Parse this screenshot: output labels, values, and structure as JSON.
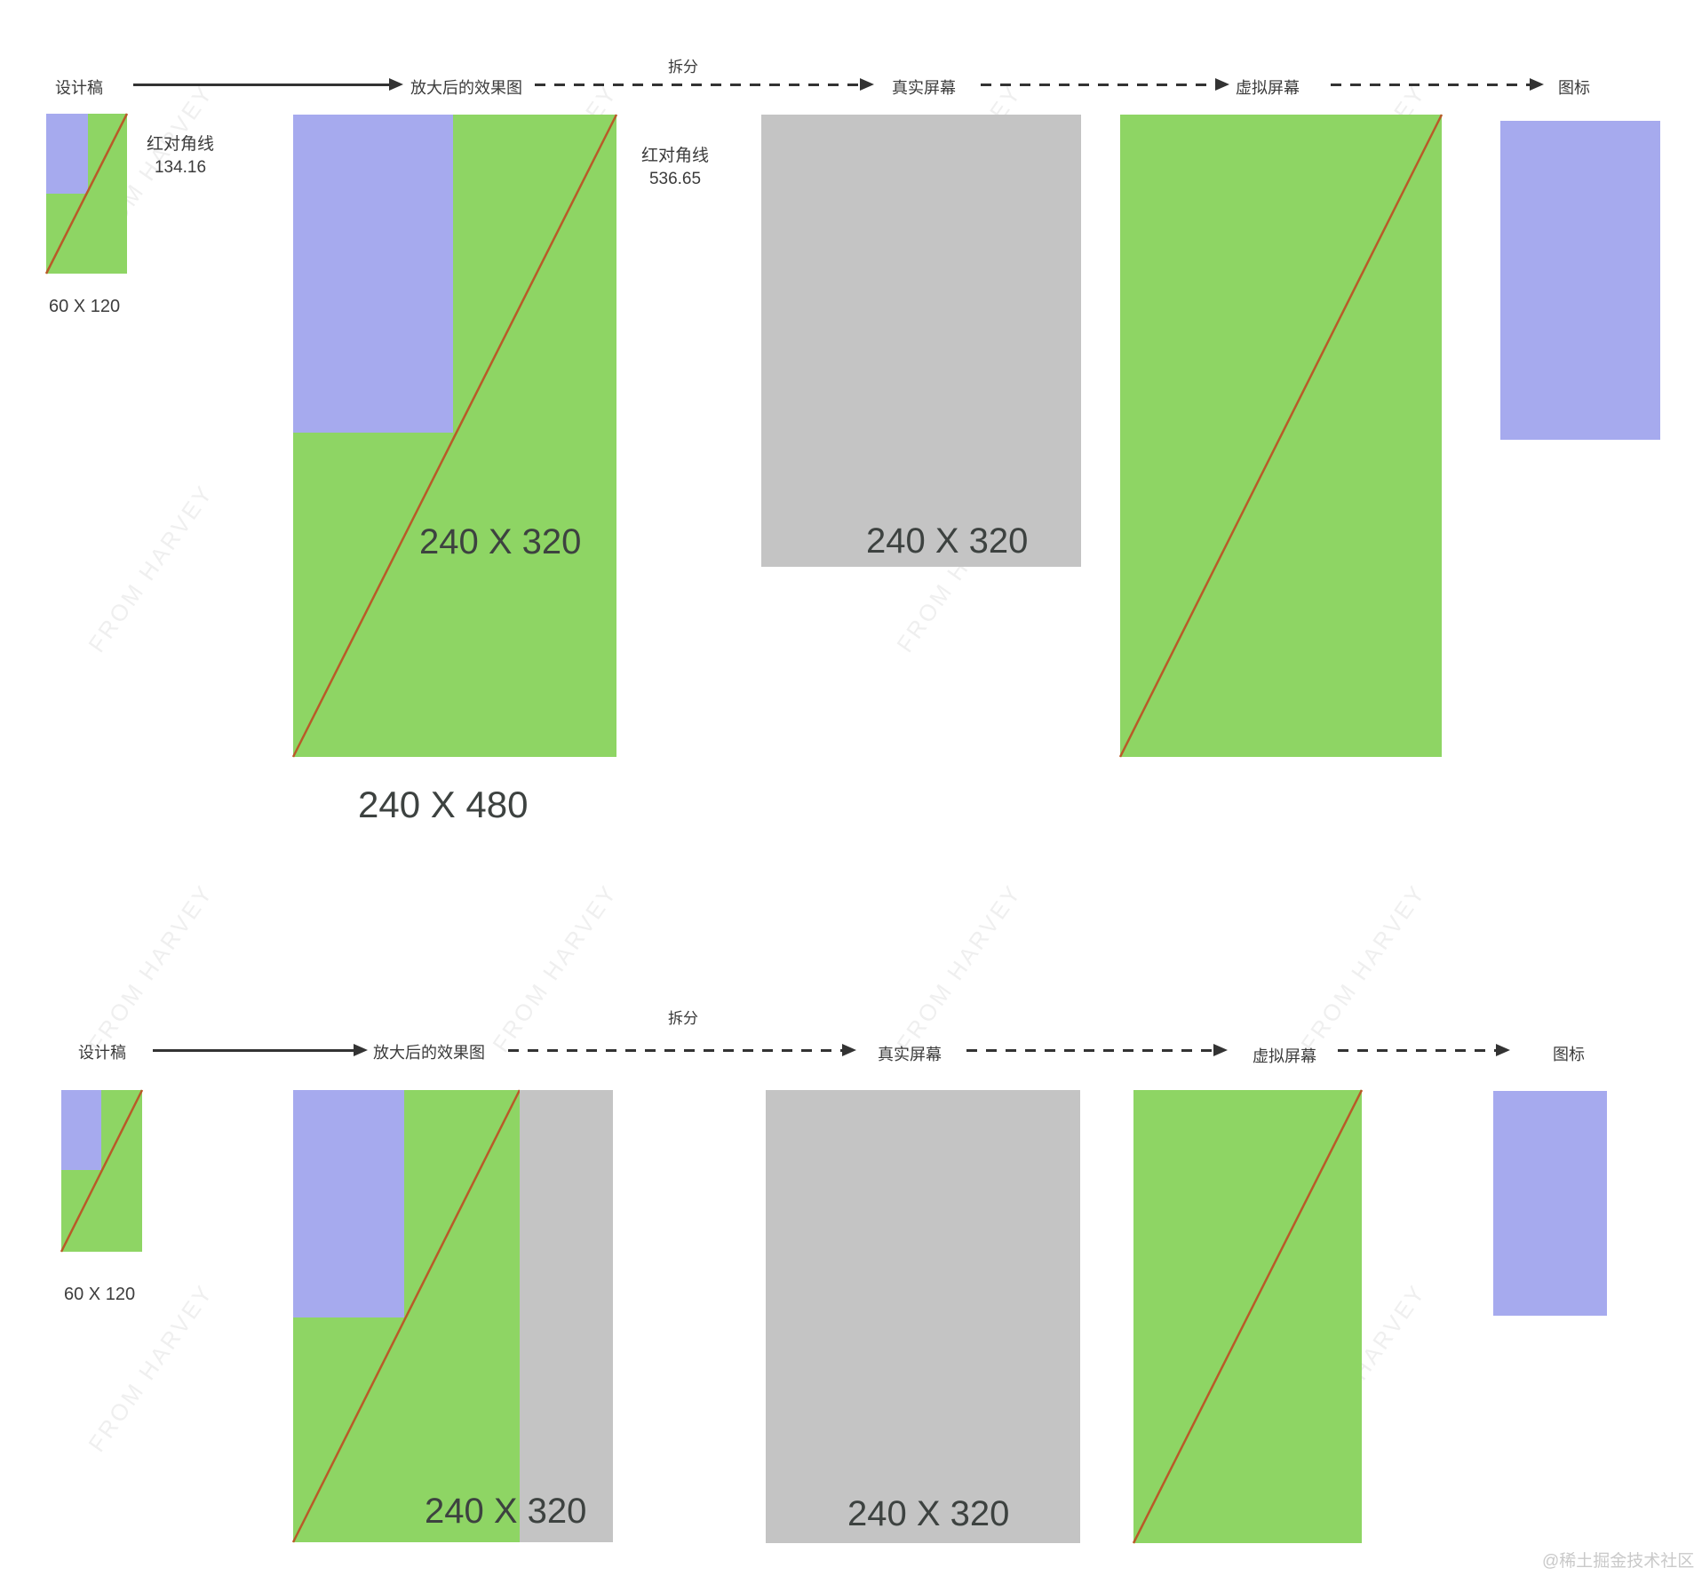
{
  "colors": {
    "green": "#8ed564",
    "purple": "#a6aaee",
    "gray": "#c4c4c4",
    "red_line": "#b95a28",
    "ink": "#3b3b3b"
  },
  "watermark_text": "FROM HARVEY",
  "credit": "@稀土掘金技术社区",
  "rows": [
    {
      "labels": {
        "design": "设计稿",
        "enlarged": "放大后的效果图",
        "split": "拆分",
        "real_screen": "真实屏幕",
        "virtual_screen": "虚拟屏幕",
        "icon": "图标"
      },
      "design_size": "60 X 120",
      "red_diagonal_label": "红对角线",
      "red_diagonal_value": "134.16",
      "red_diagonal_label_2": "红对角线",
      "red_diagonal_value_2": "536.65",
      "enlarged_inner_size": "240 X 320",
      "enlarged_full_size": "240 X 480",
      "real_size": "240 X 320"
    },
    {
      "labels": {
        "design": "设计稿",
        "enlarged": "放大后的效果图",
        "split": "拆分",
        "real_screen": "真实屏幕",
        "virtual_screen": "虚拟屏幕",
        "icon": "图标"
      },
      "design_size": "60 X 120",
      "enlarged_inner_size": "240 X 320",
      "real_size": "240 X 320"
    }
  ]
}
